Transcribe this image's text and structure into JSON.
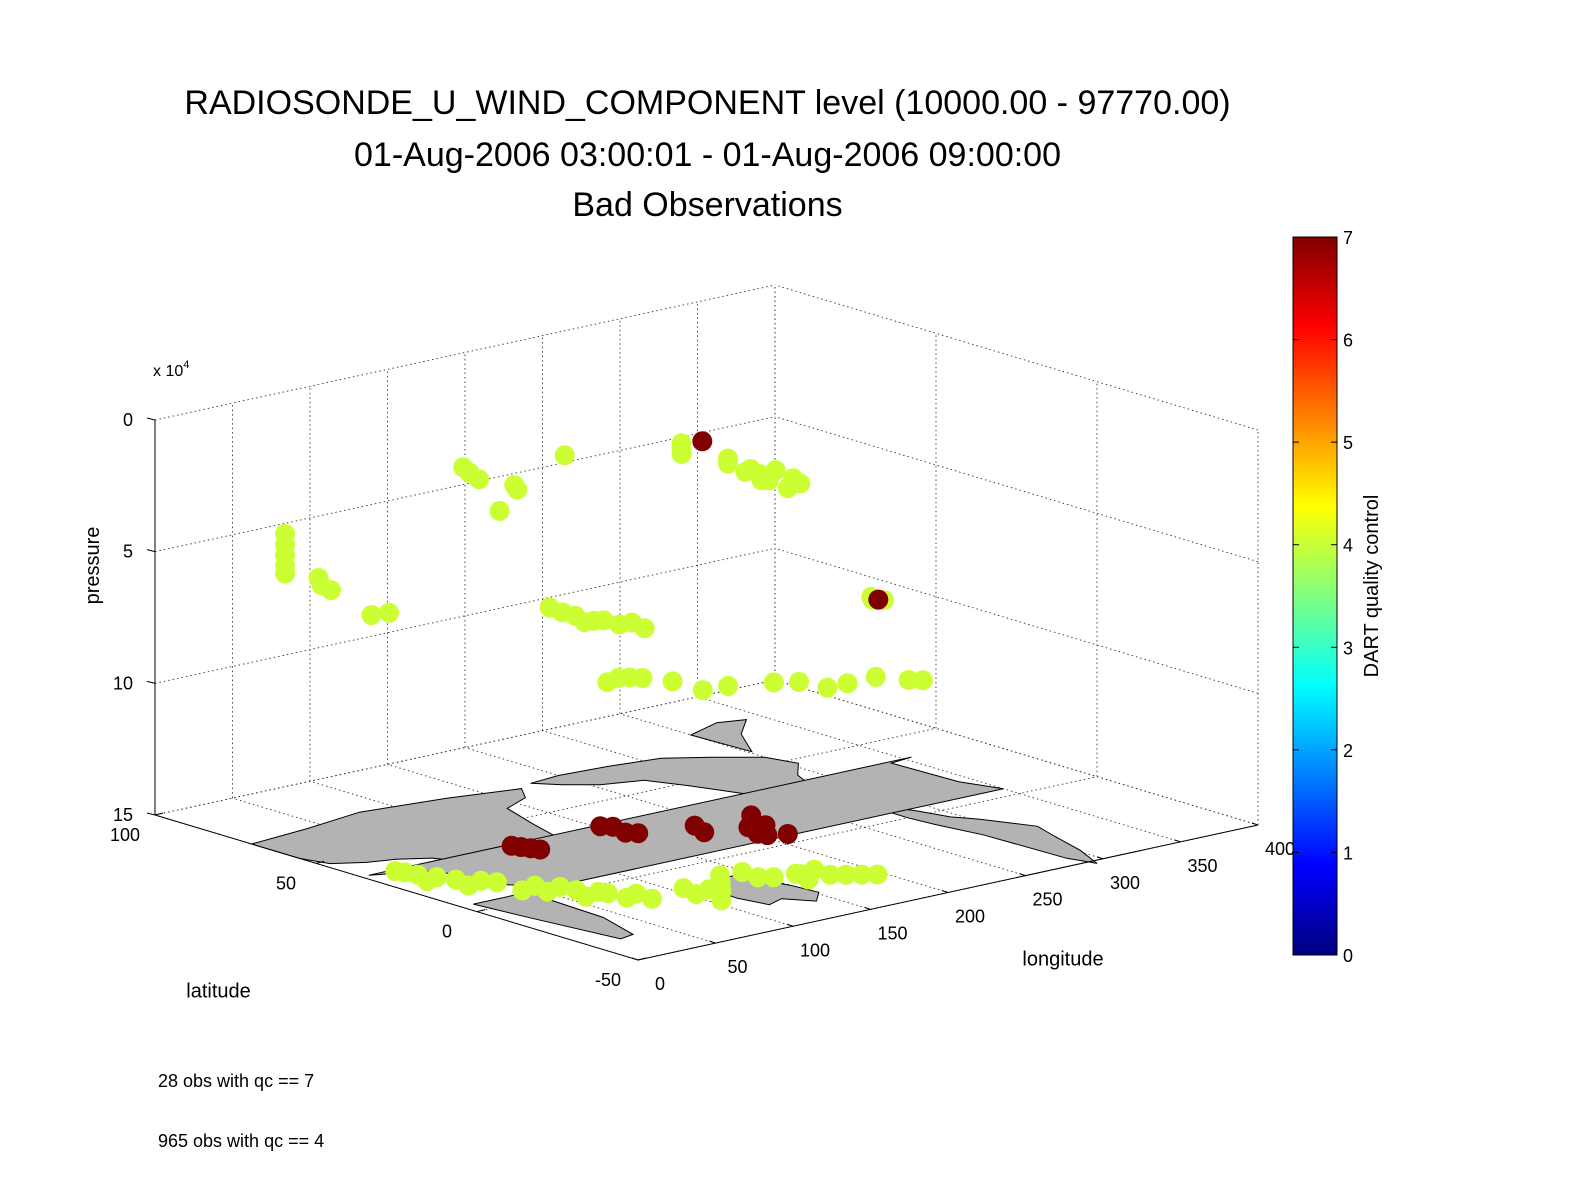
{
  "chart_data": {
    "type": "scatter",
    "title": [
      "RADIOSONDE_U_WIND_COMPONENT level (10000.00 - 97770.00)",
      "01-Aug-2006 03:00:01 - 01-Aug-2006 09:00:00",
      "Bad Observations"
    ],
    "axes": {
      "x": {
        "label": "longitude",
        "range": [
          0,
          400
        ],
        "ticks": [
          0,
          50,
          100,
          150,
          200,
          250,
          300,
          350,
          400
        ]
      },
      "y": {
        "label": "latitude",
        "range": [
          -50,
          100
        ],
        "ticks": [
          -50,
          0,
          50,
          100
        ]
      },
      "z": {
        "label": "pressure",
        "range": [
          0,
          150000
        ],
        "ticks": [
          0,
          5,
          10,
          15
        ],
        "exponent_label": "x 10",
        "exponent": "4",
        "reversed": true
      }
    },
    "grid": true,
    "colorbar": {
      "label": "DART quality control",
      "range": [
        0,
        7
      ],
      "ticks": [
        0,
        1,
        2,
        3,
        4,
        5,
        6,
        7
      ],
      "colormap": "jet"
    },
    "series": [
      {
        "qc": 4,
        "color": "#ccff33",
        "points": [
          [
            240,
            52,
            22000
          ],
          [
            240,
            52,
            24000
          ],
          [
            240,
            52,
            26000
          ],
          [
            245,
            40,
            24000
          ],
          [
            245,
            40,
            26000
          ],
          [
            248,
            36,
            28000
          ],
          [
            250,
            32,
            30000
          ],
          [
            255,
            30,
            26000
          ],
          [
            258,
            26,
            28000
          ],
          [
            262,
            28,
            30000
          ],
          [
            270,
            45,
            33000
          ],
          [
            272,
            42,
            35000
          ],
          [
            290,
            52,
            40000
          ],
          [
            292,
            50,
            42000
          ],
          [
            296,
            46,
            44000
          ],
          [
            300,
            44,
            42000
          ],
          [
            122,
            63,
            20000
          ],
          [
            124,
            62,
            22000
          ],
          [
            126,
            60,
            24000
          ],
          [
            132,
            52,
            24000
          ],
          [
            134,
            52,
            26000
          ],
          [
            5,
            62,
            30000
          ],
          [
            5,
            62,
            34000
          ],
          [
            5,
            62,
            38000
          ],
          [
            5,
            62,
            42000
          ],
          [
            5,
            62,
            45000
          ],
          [
            12,
            55,
            45000
          ],
          [
            14,
            55,
            48000
          ],
          [
            18,
            54,
            50000
          ],
          [
            15,
            40,
            54000
          ],
          [
            18,
            36,
            52000
          ],
          [
            78,
            15,
            50000
          ],
          [
            80,
            12,
            51000
          ],
          [
            84,
            10,
            52000
          ],
          [
            86,
            8,
            54000
          ],
          [
            88,
            6,
            53000
          ],
          [
            92,
            5,
            53000
          ],
          [
            96,
            2,
            54000
          ],
          [
            100,
            0,
            53000
          ],
          [
            104,
            -2,
            55000
          ],
          [
            105,
            10,
            80000
          ],
          [
            108,
            8,
            78000
          ],
          [
            300,
            22,
            77000
          ],
          [
            304,
            20,
            78000
          ],
          [
            330,
            36,
            87000
          ],
          [
            175,
            57,
            20000
          ],
          [
            160,
            70,
            44000
          ],
          [
            244,
            70,
            118000
          ],
          [
            248,
            68,
            118000
          ],
          [
            255,
            62,
            118000
          ],
          [
            262,
            56,
            120000
          ],
          [
            270,
            52,
            118000
          ],
          [
            285,
            45,
            116000
          ],
          [
            295,
            42,
            116000
          ],
          [
            305,
            38,
            118000
          ],
          [
            318,
            38,
            118000
          ],
          [
            330,
            35,
            116000
          ],
          [
            345,
            32,
            118000
          ],
          [
            350,
            30,
            118000
          ],
          [
            20,
            35,
            150000
          ],
          [
            22,
            33,
            150000
          ],
          [
            24,
            30,
            150000
          ],
          [
            26,
            28,
            152000
          ],
          [
            28,
            26,
            150000
          ],
          [
            32,
            22,
            150000
          ],
          [
            36,
            20,
            152000
          ],
          [
            40,
            18,
            150000
          ],
          [
            44,
            15,
            150000
          ],
          [
            50,
            10,
            152000
          ],
          [
            54,
            8,
            150000
          ],
          [
            58,
            6,
            152000
          ],
          [
            62,
            4,
            150000
          ],
          [
            64,
            0,
            150000
          ],
          [
            66,
            -2,
            152000
          ],
          [
            70,
            -4,
            150000
          ],
          [
            72,
            -6,
            150000
          ],
          [
            80,
            -8,
            152000
          ],
          [
            82,
            -10,
            150000
          ],
          [
            88,
            -12,
            152000
          ],
          [
            100,
            -16,
            148000
          ],
          [
            104,
            -18,
            150000
          ],
          [
            108,
            -20,
            148000
          ],
          [
            112,
            -22,
            152000
          ],
          [
            116,
            -20,
            150000
          ],
          [
            120,
            -18,
            150000
          ],
          [
            128,
            -14,
            150000
          ],
          [
            132,
            -12,
            152000
          ],
          [
            136,
            -10,
            150000
          ],
          [
            142,
            -14,
            148000
          ],
          [
            148,
            -16,
            150000
          ],
          [
            154,
            -18,
            150000
          ],
          [
            160,
            -22,
            148000
          ],
          [
            164,
            -24,
            150000
          ],
          [
            168,
            -20,
            150000
          ],
          [
            172,
            -22,
            148000
          ],
          [
            178,
            -24,
            150000
          ],
          [
            184,
            -26,
            150000
          ],
          [
            190,
            -28,
            150000
          ],
          [
            196,
            -30,
            150000
          ]
        ]
      },
      {
        "qc": 7,
        "color": "#800000",
        "points": [
          [
            270,
            60,
            28000
          ],
          [
            342,
            40,
            90000
          ],
          [
            95,
            35,
            150000
          ],
          [
            97,
            33,
            150000
          ],
          [
            99,
            31,
            150000
          ],
          [
            101,
            29,
            150000
          ],
          [
            146,
            32,
            148000
          ],
          [
            150,
            30,
            148000
          ],
          [
            154,
            28,
            150000
          ],
          [
            158,
            26,
            150000
          ],
          [
            182,
            20,
            148000
          ],
          [
            184,
            18,
            150000
          ],
          [
            200,
            12,
            148000
          ],
          [
            202,
            10,
            150000
          ],
          [
            204,
            8,
            150000
          ],
          [
            206,
            14,
            145000
          ],
          [
            209,
            11,
            148000
          ],
          [
            213,
            6,
            150000
          ]
        ]
      }
    ],
    "annotations": [
      "28 obs with qc == 7",
      "965 obs with qc == 4"
    ]
  },
  "palette": {
    "land": "#b3b3b3",
    "coast": "#000000",
    "grid": "#333333"
  }
}
